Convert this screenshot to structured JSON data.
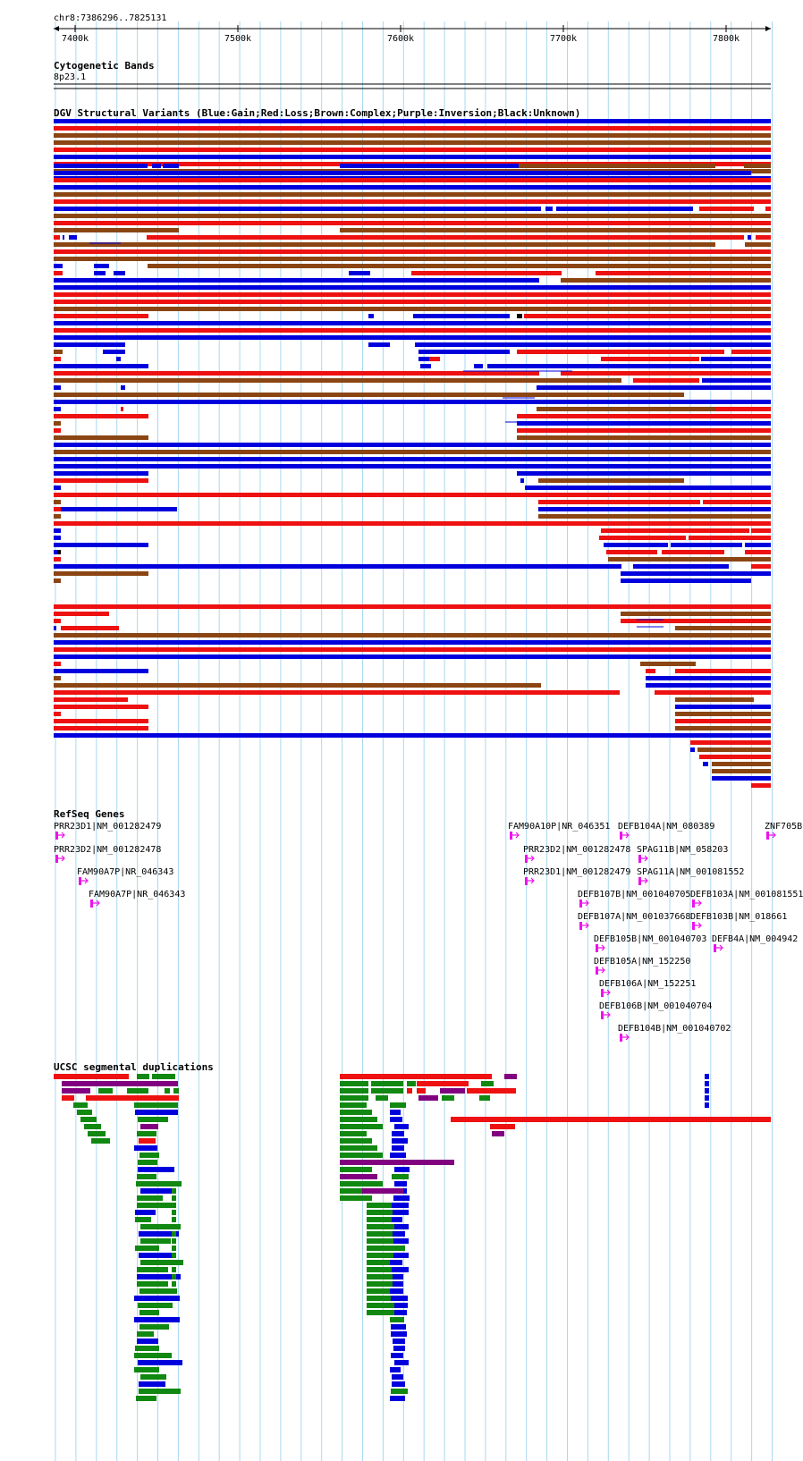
{
  "locus": "chr8:7386296..7825131",
  "ruler": {
    "ticks": [
      7400,
      7500,
      7600,
      7700,
      7800
    ],
    "unit": "k"
  },
  "tracks": {
    "cytobands": {
      "title": "Cytogenetic Bands",
      "band": "8p23.1"
    },
    "dgv": {
      "title": "DGV Structural Variants (Blue:Gain;Red:Loss;Brown:Complex;Purple:Inversion;Black:Unknown)"
    },
    "refseq": {
      "title": "RefSeq Genes",
      "genes": [
        "PRR23D1|NM_001282479",
        "PRR23D2|NM_001282478",
        "FAM90A7P|NR_046343",
        "FAM90A7P|NR_046343",
        "FAM90A10P|NR_046351",
        "DEFB104A|NM_080389",
        "ZNF705B",
        "PRR23D2|NM_001282478",
        "SPAG11B|NM_058203",
        "PRR23D1|NM_001282479",
        "SPAG11A|NM_001081552",
        "DEFB107B|NM_001040705",
        "DEFB103A|NM_001081551",
        "DEFB107A|NM_001037668",
        "DEFB103B|NM_018661",
        "DEFB105B|NM_001040703",
        "DEFB4A|NM_004942",
        "DEFB105A|NM_152250",
        "DEFB106A|NM_152251",
        "DEFB106B|NM_001040704",
        "DEFB104B|NM_001040702"
      ]
    },
    "segdups": {
      "title": "UCSC segmental duplications"
    }
  },
  "colors": {
    "gain": "#0000dd",
    "loss": "#ee1111",
    "complex": "#8b4513",
    "inversion": "#800080",
    "unknown": "#000000",
    "segdup_green": "#118811",
    "gene": "#ee11ee",
    "grid": "#a8d8f0"
  }
}
